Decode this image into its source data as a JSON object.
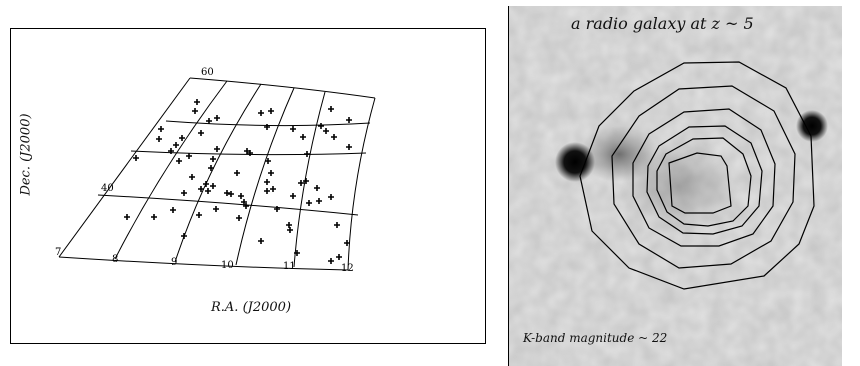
{
  "left_figure": {
    "xlabel": "R.A. (J2000)",
    "ylabel": "Dec. (J2000)",
    "dec_labels": [
      "60",
      "40"
    ],
    "ra_labels": [
      "7",
      "8",
      "9",
      "10",
      "11",
      "12"
    ],
    "points": [
      [
        196,
        101
      ],
      [
        194,
        110
      ],
      [
        208,
        120
      ],
      [
        216,
        117
      ],
      [
        200,
        132
      ],
      [
        160,
        128
      ],
      [
        158,
        138
      ],
      [
        181,
        137
      ],
      [
        175,
        144
      ],
      [
        170,
        150
      ],
      [
        135,
        157
      ],
      [
        178,
        160
      ],
      [
        188,
        155
      ],
      [
        216,
        148
      ],
      [
        212,
        158
      ],
      [
        210,
        167
      ],
      [
        191,
        176
      ],
      [
        205,
        183
      ],
      [
        207,
        190
      ],
      [
        212,
        185
      ],
      [
        200,
        188
      ],
      [
        183,
        192
      ],
      [
        226,
        192
      ],
      [
        230,
        193
      ],
      [
        240,
        195
      ],
      [
        243,
        201
      ],
      [
        236,
        172
      ],
      [
        246,
        150
      ],
      [
        249,
        152
      ],
      [
        266,
        126
      ],
      [
        260,
        112
      ],
      [
        270,
        110
      ],
      [
        292,
        128
      ],
      [
        302,
        136
      ],
      [
        320,
        125
      ],
      [
        325,
        130
      ],
      [
        330,
        108
      ],
      [
        348,
        119
      ],
      [
        333,
        136
      ],
      [
        348,
        146
      ],
      [
        306,
        153
      ],
      [
        267,
        160
      ],
      [
        270,
        172
      ],
      [
        266,
        181
      ],
      [
        266,
        190
      ],
      [
        272,
        188
      ],
      [
        276,
        208
      ],
      [
        292,
        195
      ],
      [
        300,
        182
      ],
      [
        305,
        180
      ],
      [
        316,
        187
      ],
      [
        318,
        200
      ],
      [
        330,
        196
      ],
      [
        308,
        202
      ],
      [
        215,
        208
      ],
      [
        198,
        214
      ],
      [
        172,
        209
      ],
      [
        153,
        216
      ],
      [
        126,
        216
      ],
      [
        183,
        235
      ],
      [
        260,
        240
      ],
      [
        288,
        224
      ],
      [
        289,
        229
      ],
      [
        296,
        252
      ],
      [
        336,
        224
      ],
      [
        346,
        242
      ],
      [
        338,
        256
      ],
      [
        330,
        260
      ],
      [
        245,
        205
      ],
      [
        238,
        217
      ]
    ]
  },
  "right_figure": {
    "title": "a radio galaxy at z ~ 5",
    "caption": "K-band magnitude ~ 22",
    "blob_color": "#0a0a0a",
    "background_color": "#c8c8c8"
  }
}
